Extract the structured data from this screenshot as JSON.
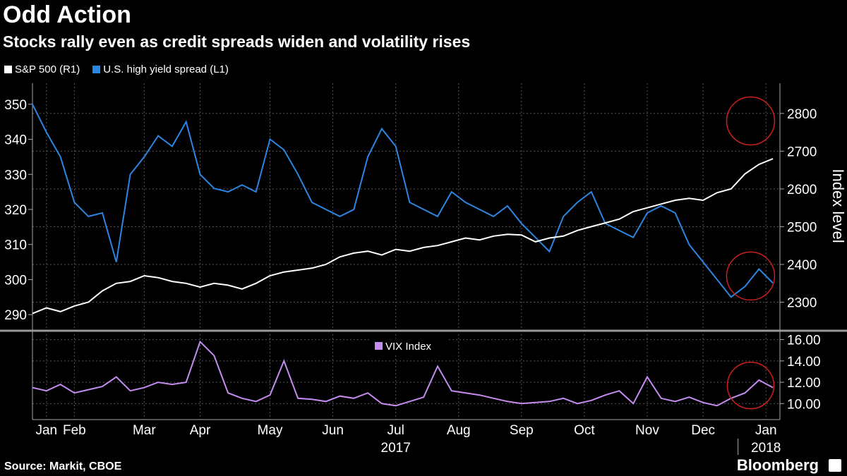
{
  "title": "Odd Action",
  "subtitle": "Stocks rally even as credit spreads widen and volatility rises",
  "source": "Source: Markit, CBOE",
  "brand": "Bloomberg",
  "colors": {
    "sp500": "#ffffff",
    "hy": "#2b86e3",
    "vix": "#c58cf0",
    "circle": "#cc2020",
    "grid": "#555555"
  },
  "chart_data": [
    {
      "type": "line",
      "title": "Stocks rally even as credit spreads widen and volatility rises",
      "ylabel_right": "Index level",
      "legend": [
        {
          "name": "S&P 500 (R1)",
          "color": "#ffffff"
        },
        {
          "name": "U.S. high yield spread (L1)",
          "color": "#2b86e3"
        }
      ],
      "ylim_left": [
        286,
        356
      ],
      "yticks_left": [
        290,
        300,
        310,
        320,
        330,
        340,
        350
      ],
      "ylim_right": [
        2230,
        2880
      ],
      "yticks_right": [
        2300,
        2400,
        2500,
        2600,
        2700,
        2800
      ],
      "x_range": [
        0,
        53.5
      ],
      "series": [
        {
          "name": "S&P 500 (R1)",
          "axis": "right",
          "x": [
            0,
            1,
            2,
            3,
            4,
            5,
            6,
            7,
            8,
            9,
            10,
            11,
            12,
            13,
            14,
            15,
            16,
            17,
            18,
            19,
            20,
            21,
            22,
            23,
            24,
            25,
            26,
            27,
            28,
            29,
            30,
            31,
            32,
            33,
            34,
            35,
            36,
            37,
            38,
            39,
            40,
            41,
            42,
            43,
            44,
            45,
            46,
            47,
            48,
            49,
            50,
            51,
            52,
            53
          ],
          "values": [
            2270,
            2285,
            2275,
            2290,
            2300,
            2330,
            2350,
            2355,
            2370,
            2365,
            2355,
            2350,
            2340,
            2350,
            2345,
            2335,
            2350,
            2370,
            2380,
            2385,
            2390,
            2400,
            2420,
            2430,
            2435,
            2425,
            2440,
            2435,
            2445,
            2450,
            2460,
            2470,
            2465,
            2475,
            2480,
            2478,
            2460,
            2470,
            2475,
            2490,
            2500,
            2510,
            2520,
            2540,
            2550,
            2560,
            2570,
            2575,
            2570,
            2590,
            2600,
            2640,
            2665,
            2680
          ]
        },
        {
          "name": "U.S. high yield spread (L1)",
          "axis": "left",
          "x": [
            0,
            1,
            2,
            3,
            4,
            5,
            6,
            7,
            8,
            9,
            10,
            11,
            12,
            13,
            14,
            15,
            16,
            17,
            18,
            19,
            20,
            21,
            22,
            23,
            24,
            25,
            26,
            27,
            28,
            29,
            30,
            31,
            32,
            33,
            34,
            35,
            36,
            37,
            38,
            39,
            40,
            41,
            42,
            43,
            44,
            45,
            46,
            47,
            48,
            49,
            50,
            51,
            52,
            53
          ],
          "values": [
            350,
            342,
            335,
            322,
            318,
            319,
            305,
            330,
            335,
            341,
            338,
            345,
            330,
            326,
            325,
            327,
            325,
            340,
            337,
            330,
            322,
            320,
            318,
            320,
            335,
            343,
            338,
            322,
            320,
            318,
            325,
            322,
            320,
            318,
            321,
            316,
            312,
            308,
            318,
            322,
            325,
            316,
            314,
            312,
            319,
            321,
            319,
            310,
            305,
            300,
            295,
            298,
            303,
            299
          ]
        }
      ]
    },
    {
      "type": "line",
      "legend": [
        {
          "name": "VIX Index",
          "color": "#c58cf0"
        }
      ],
      "ylim_right": [
        8.5,
        16.5
      ],
      "yticks_right": [
        "10.00",
        "12.00",
        "14.00",
        "16.00"
      ],
      "x_range": [
        0,
        53.5
      ],
      "series": [
        {
          "name": "VIX Index",
          "axis": "right",
          "x": [
            0,
            1,
            2,
            3,
            4,
            5,
            6,
            7,
            8,
            9,
            10,
            11,
            12,
            13,
            14,
            15,
            16,
            17,
            18,
            19,
            20,
            21,
            22,
            23,
            24,
            25,
            26,
            27,
            28,
            29,
            30,
            31,
            32,
            33,
            34,
            35,
            36,
            37,
            38,
            39,
            40,
            41,
            42,
            43,
            44,
            45,
            46,
            47,
            48,
            49,
            50,
            51,
            52,
            53
          ],
          "values": [
            11.5,
            11.2,
            11.8,
            11.0,
            11.3,
            11.6,
            12.5,
            11.2,
            11.5,
            12.0,
            11.8,
            12.0,
            15.8,
            14.5,
            11.0,
            10.5,
            10.2,
            10.8,
            14.0,
            10.5,
            10.4,
            10.2,
            10.7,
            10.5,
            11.0,
            10.0,
            9.8,
            10.2,
            10.6,
            13.5,
            11.2,
            11.0,
            10.8,
            10.5,
            10.2,
            10.0,
            10.1,
            10.2,
            10.5,
            10.0,
            10.3,
            10.8,
            11.2,
            10.0,
            12.5,
            10.5,
            10.2,
            10.6,
            10.1,
            9.8,
            10.5,
            11.0,
            12.2,
            11.5
          ]
        }
      ],
      "x_tick_labels": [
        "Jan",
        "Feb",
        "Mar",
        "Apr",
        "May",
        "Jun",
        "Jul",
        "Aug",
        "Sep",
        "Oct",
        "Nov",
        "Dec",
        "Jan"
      ],
      "x_tick_positions": [
        1,
        3,
        8,
        12,
        17,
        21.5,
        26,
        30.5,
        35,
        39.5,
        44,
        48,
        52.5
      ],
      "year_labels": [
        {
          "label": "2017",
          "x": 26
        },
        {
          "label": "2018",
          "x": 52.5
        }
      ]
    }
  ]
}
